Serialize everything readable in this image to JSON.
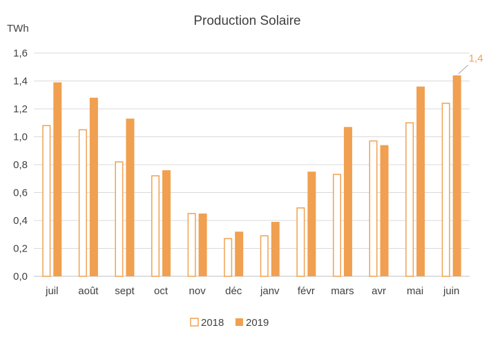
{
  "colors": {
    "series_2018_fill": "#ffffff",
    "series_2018_stroke": "#f0a050",
    "series_2019_fill": "#f0a050",
    "callout": "#f0a050",
    "grid": "#d9d9d9"
  },
  "chart_data": {
    "type": "bar",
    "title": "Production Solaire",
    "ylabel": "TWh",
    "xlabel": "",
    "ylim": [
      0,
      1.6
    ],
    "ytick_labels": [
      "0,0",
      "0,2",
      "0,4",
      "0,6",
      "0,8",
      "1,0",
      "1,2",
      "1,4",
      "1,6"
    ],
    "categories": [
      "juil",
      "août",
      "sept",
      "oct",
      "nov",
      "déc",
      "janv",
      "févr",
      "mars",
      "avr",
      "mai",
      "juin"
    ],
    "series": [
      {
        "name": "2018",
        "values": [
          1.08,
          1.05,
          0.82,
          0.72,
          0.45,
          0.27,
          0.29,
          0.49,
          0.73,
          0.97,
          1.1,
          1.24
        ]
      },
      {
        "name": "2019",
        "values": [
          1.39,
          1.28,
          1.13,
          0.76,
          0.45,
          0.32,
          0.39,
          0.75,
          1.07,
          0.94,
          1.36,
          1.44
        ]
      }
    ],
    "annotation": {
      "text": "1,4",
      "series": "2019",
      "category": "juin"
    },
    "legend_position": "bottom",
    "grid": true
  }
}
